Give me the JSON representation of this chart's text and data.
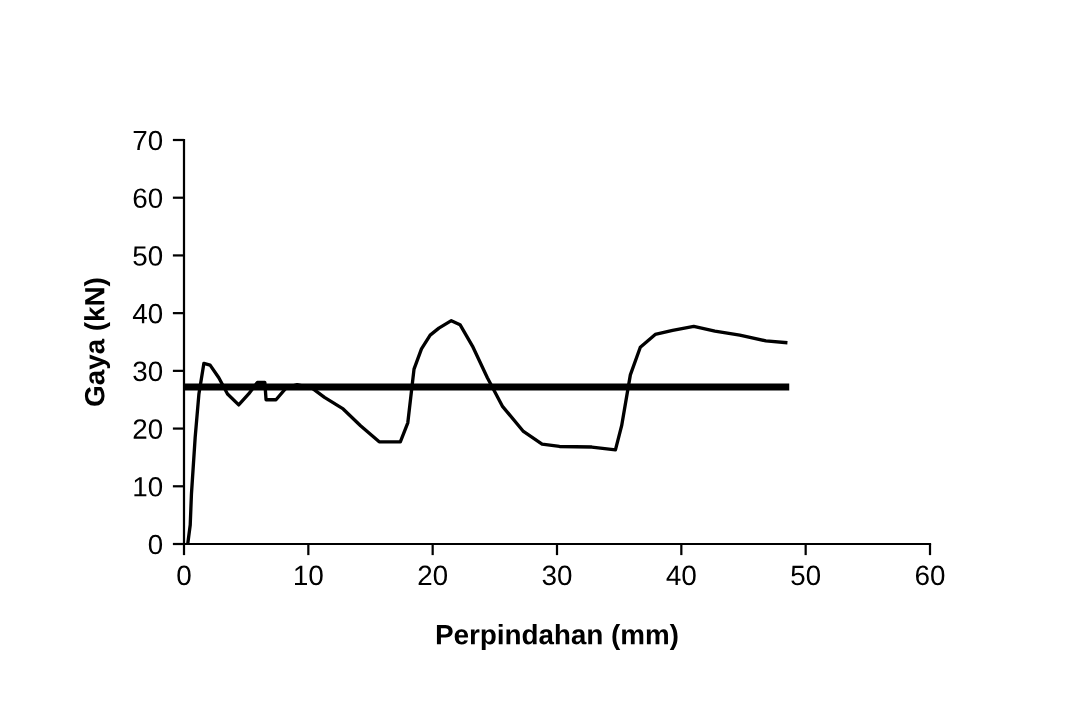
{
  "chart_data": {
    "type": "line",
    "xlabel": "Perpindahan (mm)",
    "ylabel": "Gaya (kN)",
    "xlim": [
      0,
      60
    ],
    "ylim": [
      0,
      70
    ],
    "xticks": [
      0,
      10,
      20,
      30,
      40,
      50,
      60
    ],
    "yticks": [
      0,
      10,
      20,
      30,
      40,
      50,
      60,
      70
    ],
    "grid": false,
    "legend": false,
    "marker": "none",
    "line_style": "solid",
    "series": [
      {
        "color": "#000000",
        "x": [
          0.3,
          0.5,
          0.6,
          0.9,
          1.2,
          1.6,
          2.1,
          2.8,
          3.5,
          4.4,
          5.2,
          5.9,
          6.5,
          6.6,
          7.4,
          8.2,
          9.1,
          10.3,
          11.3,
          12.8,
          14.2,
          15.7,
          17.4,
          18,
          18.5,
          19.1,
          19.8,
          20.5,
          21.5,
          22.2,
          23.2,
          24.4,
          25.6,
          27.3,
          28.8,
          30.2,
          32.8,
          34.7,
          35.2,
          35.9,
          36.7,
          37.9,
          39.3,
          41,
          42.7,
          44.7,
          46.8,
          48.4
        ],
        "values": [
          0,
          3.3,
          8.7,
          18.5,
          26,
          31.3,
          31,
          28.8,
          26,
          24.1,
          26,
          28,
          28,
          25,
          25,
          27,
          27.6,
          27,
          25.4,
          23.4,
          20.5,
          17.7,
          17.7,
          21,
          30.3,
          33.8,
          36.2,
          37.4,
          38.7,
          38,
          34.3,
          28.8,
          23.9,
          19.5,
          17.3,
          16.9,
          16.8,
          16.3,
          20.5,
          29.3,
          34.1,
          36.3,
          37,
          37.7,
          36.9,
          36.2,
          35.2,
          34.9
        ]
      },
      {
        "color": "#000000",
        "x": [
          0,
          48.4
        ],
        "values": [
          27.2,
          27.2
        ]
      }
    ]
  }
}
